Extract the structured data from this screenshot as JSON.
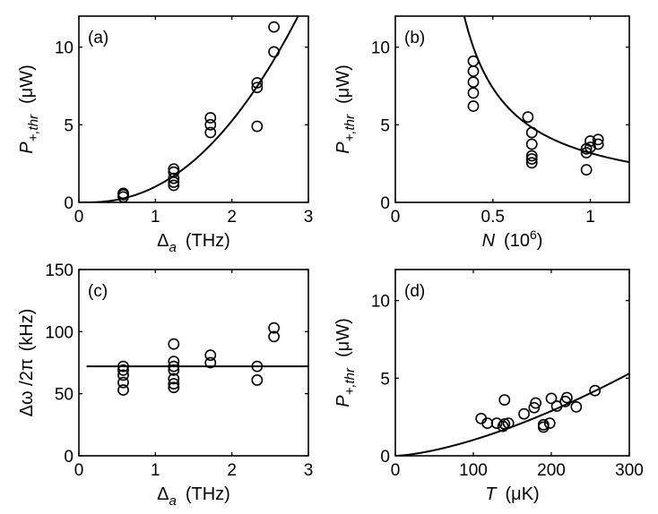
{
  "chart_data": [
    {
      "id": "a",
      "type": "scatter",
      "panel_label": "(a)",
      "xlabel": {
        "symbol": "Δ",
        "sub": "a",
        "unit": "(THz)"
      },
      "ylabel": {
        "symbol": "P",
        "sub": "+,thr",
        "unit": "(μW)"
      },
      "xlim": [
        0,
        3
      ],
      "ylim": [
        0,
        12
      ],
      "xticks": [
        0,
        1,
        2,
        3
      ],
      "yticks": [
        0,
        5,
        10
      ],
      "points": [
        [
          0.58,
          0.35
        ],
        [
          0.58,
          0.5
        ],
        [
          0.58,
          0.58
        ],
        [
          1.24,
          1.1
        ],
        [
          1.24,
          1.3
        ],
        [
          1.24,
          1.55
        ],
        [
          1.24,
          1.95
        ],
        [
          1.24,
          2.15
        ],
        [
          1.72,
          4.5
        ],
        [
          1.72,
          5.0
        ],
        [
          1.72,
          5.45
        ],
        [
          2.33,
          4.9
        ],
        [
          2.33,
          7.4
        ],
        [
          2.33,
          7.7
        ],
        [
          2.55,
          9.7
        ],
        [
          2.55,
          11.3
        ]
      ],
      "fit": {
        "form": "power",
        "a": 1.28,
        "x0": 0.1,
        "p": 2.2
      }
    },
    {
      "id": "b",
      "type": "scatter",
      "panel_label": "(b)",
      "xlabel": {
        "symbol": "N",
        "unit": "(10",
        "sup": "6",
        "close": ")"
      },
      "ylabel": {
        "symbol": "P",
        "sub": "+,thr",
        "unit": "(μW)"
      },
      "xlim": [
        0,
        1.2
      ],
      "ylim": [
        0,
        12
      ],
      "xticks": [
        0,
        0.5,
        1
      ],
      "xtick_labels": [
        "0",
        "0.5",
        "1"
      ],
      "yticks": [
        0,
        5,
        10
      ],
      "points": [
        [
          0.4,
          6.2
        ],
        [
          0.4,
          7.05
        ],
        [
          0.4,
          7.75
        ],
        [
          0.4,
          8.45
        ],
        [
          0.4,
          9.1
        ],
        [
          0.68,
          5.5
        ],
        [
          0.7,
          2.55
        ],
        [
          0.7,
          2.8
        ],
        [
          0.7,
          3.0
        ],
        [
          0.7,
          3.75
        ],
        [
          0.7,
          4.5
        ],
        [
          0.98,
          2.1
        ],
        [
          0.98,
          3.2
        ],
        [
          0.98,
          3.45
        ],
        [
          1.0,
          3.55
        ],
        [
          1.0,
          3.95
        ],
        [
          1.04,
          3.75
        ],
        [
          1.04,
          4.05
        ]
      ],
      "fit": {
        "form": "inverse",
        "a": 2.8,
        "n": 1.0,
        "x0": 0.12
      }
    },
    {
      "id": "c",
      "type": "scatter",
      "panel_label": "(c)",
      "xlabel": {
        "symbol": "Δ",
        "sub": "a",
        "unit": "(THz)"
      },
      "ylabel": {
        "symbol": "Δω /2π",
        "unit": "(kHz)"
      },
      "xlim": [
        0,
        3
      ],
      "ylim": [
        0,
        150
      ],
      "xticks": [
        0,
        1,
        2,
        3
      ],
      "yticks": [
        0,
        50,
        100,
        150
      ],
      "points": [
        [
          0.58,
          53
        ],
        [
          0.58,
          59
        ],
        [
          0.58,
          65
        ],
        [
          0.58,
          69
        ],
        [
          0.58,
          72
        ],
        [
          1.24,
          55
        ],
        [
          1.24,
          58
        ],
        [
          1.24,
          62
        ],
        [
          1.24,
          69
        ],
        [
          1.24,
          72
        ],
        [
          1.24,
          76
        ],
        [
          1.24,
          90
        ],
        [
          1.72,
          75
        ],
        [
          1.72,
          81
        ],
        [
          2.33,
          61
        ],
        [
          2.33,
          72
        ],
        [
          2.55,
          96
        ],
        [
          2.55,
          103
        ]
      ],
      "fit": {
        "form": "constant",
        "value": 72,
        "x_start": 0.1,
        "x_end": 3.0
      }
    },
    {
      "id": "d",
      "type": "scatter",
      "panel_label": "(d)",
      "xlabel": {
        "symbol": "T",
        "unit": "(μK)"
      },
      "ylabel": {
        "symbol": "P",
        "sub": "+,thr",
        "unit": "(μW)"
      },
      "xlim": [
        0,
        300
      ],
      "ylim": [
        0,
        12
      ],
      "xticks": [
        0,
        100,
        200,
        300
      ],
      "yticks": [
        0,
        5,
        10
      ],
      "points": [
        [
          110,
          2.4
        ],
        [
          118,
          2.1
        ],
        [
          130,
          2.1
        ],
        [
          138,
          1.9
        ],
        [
          140,
          2.05
        ],
        [
          140,
          3.6
        ],
        [
          145,
          2.1
        ],
        [
          165,
          2.7
        ],
        [
          178,
          3.1
        ],
        [
          180,
          3.4
        ],
        [
          190,
          1.85
        ],
        [
          190,
          2.0
        ],
        [
          198,
          2.1
        ],
        [
          200,
          3.7
        ],
        [
          207,
          3.2
        ],
        [
          218,
          3.5
        ],
        [
          220,
          3.75
        ],
        [
          232,
          3.15
        ],
        [
          256,
          4.2
        ]
      ],
      "fit": {
        "form": "power",
        "a": 0.00102,
        "x0": 0,
        "p": 1.5
      }
    }
  ]
}
